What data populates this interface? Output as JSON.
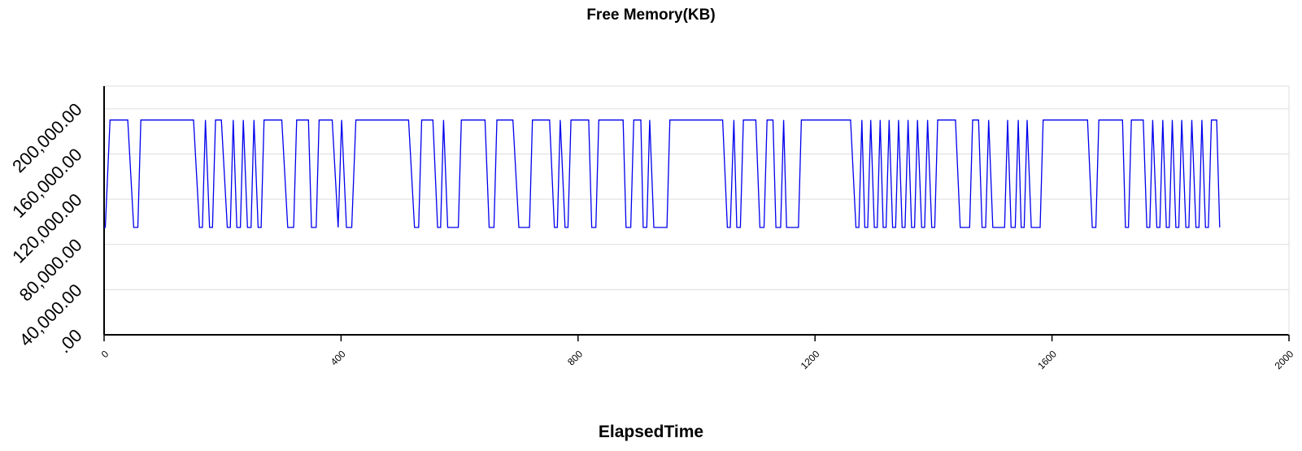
{
  "chart_data": {
    "type": "line",
    "title": "Free Memory(KB)",
    "xlabel": "ElapsedTime",
    "ylabel": "",
    "xlim": [
      0,
      2000
    ],
    "ylim": [
      0,
      220000
    ],
    "grid": true,
    "legend": "none",
    "x_ticks": [
      0,
      400,
      800,
      1200,
      1600,
      2000
    ],
    "x_tick_labels": [
      "0",
      "400",
      "800",
      "1200",
      "1600",
      "2000"
    ],
    "y_ticks": [
      0,
      40000,
      80000,
      120000,
      160000,
      200000
    ],
    "y_tick_labels": [
      ".00",
      "40,000.00",
      "80,000.00",
      "120,000.00",
      "160,000.00",
      "200,000.00"
    ],
    "low_value": 95000,
    "high_value": 190000,
    "series": [
      {
        "color": "#0000ee",
        "points": [
          [
            0,
            95000
          ],
          [
            2,
            95000
          ],
          [
            10,
            190000
          ],
          [
            40,
            190000
          ],
          [
            50,
            95000
          ],
          [
            57,
            95000
          ],
          [
            62,
            190000
          ],
          [
            151,
            190000
          ],
          [
            161,
            95000
          ],
          [
            166,
            95000
          ],
          [
            171,
            190000
          ],
          [
            178,
            95000
          ],
          [
            183,
            95000
          ],
          [
            188,
            190000
          ],
          [
            198,
            190000
          ],
          [
            208,
            95000
          ],
          [
            213,
            95000
          ],
          [
            218,
            190000
          ],
          [
            224,
            95000
          ],
          [
            230,
            95000
          ],
          [
            235,
            190000
          ],
          [
            242,
            95000
          ],
          [
            248,
            95000
          ],
          [
            253,
            190000
          ],
          [
            260,
            95000
          ],
          [
            265,
            95000
          ],
          [
            270,
            190000
          ],
          [
            300,
            190000
          ],
          [
            310,
            95000
          ],
          [
            320,
            95000
          ],
          [
            325,
            190000
          ],
          [
            345,
            190000
          ],
          [
            350,
            95000
          ],
          [
            358,
            95000
          ],
          [
            363,
            190000
          ],
          [
            385,
            190000
          ],
          [
            395,
            95000
          ],
          [
            412,
            95000
          ],
          [
            401,
            190000
          ],
          [
            409,
            95000
          ],
          [
            418,
            95000
          ],
          [
            425,
            190000
          ],
          [
            480,
            190000
          ],
          [
            514,
            190000
          ],
          [
            524,
            95000
          ],
          [
            531,
            95000
          ],
          [
            536,
            190000
          ],
          [
            555,
            190000
          ],
          [
            563,
            95000
          ],
          [
            568,
            95000
          ],
          [
            573,
            190000
          ],
          [
            580,
            95000
          ],
          [
            598,
            95000
          ],
          [
            603,
            190000
          ],
          [
            643,
            190000
          ],
          [
            650,
            95000
          ],
          [
            658,
            95000
          ],
          [
            663,
            190000
          ],
          [
            690,
            190000
          ],
          [
            700,
            95000
          ],
          [
            718,
            95000
          ],
          [
            723,
            190000
          ],
          [
            752,
            190000
          ],
          [
            760,
            95000
          ],
          [
            765,
            95000
          ],
          [
            770,
            190000
          ],
          [
            778,
            95000
          ],
          [
            783,
            95000
          ],
          [
            788,
            190000
          ],
          [
            818,
            190000
          ],
          [
            823,
            95000
          ],
          [
            830,
            95000
          ],
          [
            835,
            190000
          ],
          [
            876,
            190000
          ],
          [
            881,
            95000
          ],
          [
            889,
            95000
          ],
          [
            894,
            190000
          ],
          [
            906,
            190000
          ],
          [
            910,
            95000
          ],
          [
            916,
            95000
          ],
          [
            921,
            190000
          ],
          [
            928,
            95000
          ],
          [
            950,
            95000
          ],
          [
            955,
            190000
          ],
          [
            1044,
            190000
          ],
          [
            1052,
            95000
          ],
          [
            1057,
            95000
          ],
          [
            1063,
            190000
          ],
          [
            1068,
            95000
          ],
          [
            1074,
            95000
          ],
          [
            1079,
            190000
          ],
          [
            1100,
            190000
          ],
          [
            1107,
            95000
          ],
          [
            1114,
            95000
          ],
          [
            1119,
            190000
          ],
          [
            1129,
            190000
          ],
          [
            1134,
            95000
          ],
          [
            1142,
            95000
          ],
          [
            1147,
            190000
          ],
          [
            1152,
            95000
          ],
          [
            1172,
            95000
          ],
          [
            1177,
            190000
          ],
          [
            1260,
            190000
          ],
          [
            1269,
            95000
          ],
          [
            1274,
            95000
          ],
          [
            1279,
            190000
          ],
          [
            1284,
            95000
          ],
          [
            1289,
            95000
          ],
          [
            1294,
            190000
          ],
          [
            1300,
            95000
          ],
          [
            1305,
            95000
          ],
          [
            1310,
            190000
          ],
          [
            1315,
            95000
          ],
          [
            1320,
            95000
          ],
          [
            1325,
            190000
          ],
          [
            1331,
            95000
          ],
          [
            1336,
            95000
          ],
          [
            1341,
            190000
          ],
          [
            1347,
            95000
          ],
          [
            1352,
            95000
          ],
          [
            1357,
            190000
          ],
          [
            1363,
            95000
          ],
          [
            1368,
            95000
          ],
          [
            1373,
            190000
          ],
          [
            1380,
            95000
          ],
          [
            1385,
            95000
          ],
          [
            1390,
            190000
          ],
          [
            1397,
            95000
          ],
          [
            1402,
            95000
          ],
          [
            1407,
            190000
          ],
          [
            1437,
            190000
          ],
          [
            1445,
            95000
          ],
          [
            1461,
            95000
          ],
          [
            1466,
            190000
          ],
          [
            1476,
            190000
          ],
          [
            1482,
            95000
          ],
          [
            1488,
            95000
          ],
          [
            1493,
            190000
          ],
          [
            1500,
            95000
          ],
          [
            1520,
            95000
          ],
          [
            1525,
            190000
          ],
          [
            1531,
            95000
          ],
          [
            1538,
            95000
          ],
          [
            1543,
            190000
          ],
          [
            1548,
            95000
          ],
          [
            1553,
            95000
          ],
          [
            1558,
            190000
          ],
          [
            1565,
            95000
          ],
          [
            1580,
            95000
          ],
          [
            1585,
            190000
          ],
          [
            1660,
            190000
          ],
          [
            1668,
            95000
          ],
          [
            1674,
            95000
          ],
          [
            1679,
            190000
          ],
          [
            1719,
            190000
          ],
          [
            1724,
            95000
          ],
          [
            1729,
            95000
          ],
          [
            1734,
            190000
          ],
          [
            1754,
            190000
          ],
          [
            1760,
            95000
          ],
          [
            1765,
            95000
          ],
          [
            1770,
            190000
          ],
          [
            1777,
            95000
          ],
          [
            1782,
            95000
          ],
          [
            1787,
            190000
          ],
          [
            1793,
            95000
          ],
          [
            1798,
            95000
          ],
          [
            1803,
            190000
          ],
          [
            1809,
            95000
          ],
          [
            1814,
            95000
          ],
          [
            1819,
            190000
          ],
          [
            1826,
            95000
          ],
          [
            1831,
            95000
          ],
          [
            1836,
            190000
          ],
          [
            1843,
            95000
          ],
          [
            1848,
            95000
          ],
          [
            1853,
            190000
          ],
          [
            1859,
            95000
          ],
          [
            1864,
            95000
          ],
          [
            1869,
            190000
          ],
          [
            1878,
            190000
          ],
          [
            1883,
            95000
          ]
        ]
      }
    ]
  }
}
